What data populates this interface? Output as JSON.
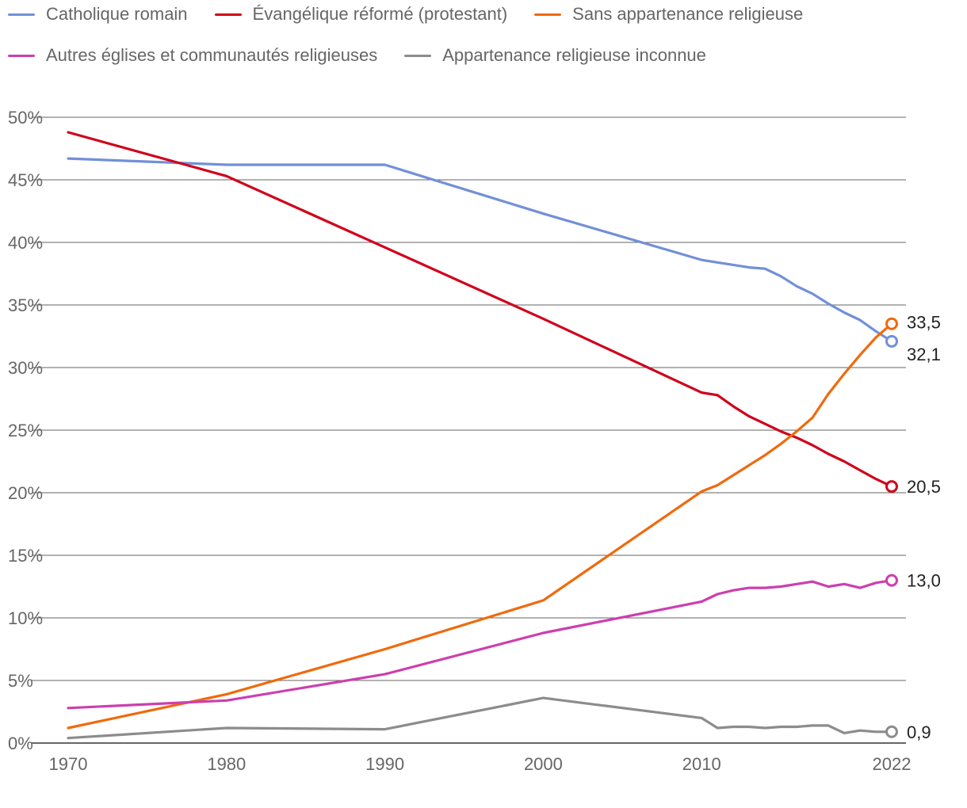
{
  "chart_data": {
    "type": "line",
    "title": "",
    "xlabel": "",
    "ylabel": "",
    "xlim": [
      1970,
      2022
    ],
    "ylim": [
      0,
      50
    ],
    "y_ticks": [
      0,
      5,
      10,
      15,
      20,
      25,
      30,
      35,
      40,
      45,
      50
    ],
    "y_tick_labels": [
      "0%",
      "5%",
      "10%",
      "15%",
      "20%",
      "25%",
      "30%",
      "35%",
      "40%",
      "45%",
      "50%"
    ],
    "x_ticks": [
      1970,
      1980,
      1990,
      2000,
      2010,
      2022
    ],
    "x_tick_labels": [
      "1970",
      "1980",
      "1990",
      "2000",
      "2010",
      "2022"
    ],
    "grid": true,
    "legend_position": "top",
    "series": [
      {
        "name": "Catholique romain",
        "color": "#7290d8",
        "end_label": "32,1",
        "x": [
          1970,
          1980,
          1990,
          2000,
          2010,
          2011,
          2012,
          2013,
          2014,
          2015,
          2016,
          2017,
          2018,
          2019,
          2020,
          2021,
          2022
        ],
        "y": [
          46.7,
          46.2,
          46.2,
          42.3,
          38.6,
          38.4,
          38.2,
          38.0,
          37.9,
          37.3,
          36.5,
          35.9,
          35.1,
          34.4,
          33.8,
          32.9,
          32.1
        ]
      },
      {
        "name": "Évangélique réformé (protestant)",
        "color": "#d0021b",
        "end_label": "20,5",
        "x": [
          1970,
          1980,
          1990,
          2000,
          2010,
          2011,
          2012,
          2013,
          2014,
          2015,
          2016,
          2017,
          2018,
          2019,
          2020,
          2021,
          2022
        ],
        "y": [
          48.8,
          45.3,
          39.6,
          33.9,
          28.0,
          27.8,
          26.9,
          26.1,
          25.5,
          24.9,
          24.4,
          23.8,
          23.1,
          22.5,
          21.8,
          21.1,
          20.5
        ]
      },
      {
        "name": "Sans appartenance religieuse",
        "color": "#f06a0c",
        "end_label": "33,5",
        "x": [
          1970,
          1980,
          1990,
          2000,
          2010,
          2011,
          2012,
          2013,
          2014,
          2015,
          2016,
          2017,
          2018,
          2019,
          2020,
          2021,
          2022
        ],
        "y": [
          1.2,
          3.9,
          7.5,
          11.4,
          20.1,
          20.6,
          21.4,
          22.2,
          23.0,
          23.9,
          24.9,
          26.0,
          27.9,
          29.5,
          31.0,
          32.4,
          33.5
        ]
      },
      {
        "name": "Autres églises et communautés religieuses",
        "color": "#cc3fae",
        "end_label": "13,0",
        "x": [
          1970,
          1980,
          1990,
          2000,
          2010,
          2011,
          2012,
          2013,
          2014,
          2015,
          2016,
          2017,
          2018,
          2019,
          2020,
          2021,
          2022
        ],
        "y": [
          2.8,
          3.4,
          5.5,
          8.8,
          11.3,
          11.9,
          12.2,
          12.4,
          12.4,
          12.5,
          12.7,
          12.9,
          12.5,
          12.7,
          12.4,
          12.8,
          13.0
        ]
      },
      {
        "name": "Appartenance religieuse inconnue",
        "color": "#8c8c8c",
        "end_label": "0,9",
        "x": [
          1970,
          1980,
          1990,
          2000,
          2010,
          2011,
          2012,
          2013,
          2014,
          2015,
          2016,
          2017,
          2018,
          2019,
          2020,
          2021,
          2022
        ],
        "y": [
          0.4,
          1.2,
          1.1,
          3.6,
          2.0,
          1.2,
          1.3,
          1.3,
          1.2,
          1.3,
          1.3,
          1.4,
          1.4,
          0.8,
          1.0,
          0.9,
          0.9
        ]
      }
    ]
  }
}
